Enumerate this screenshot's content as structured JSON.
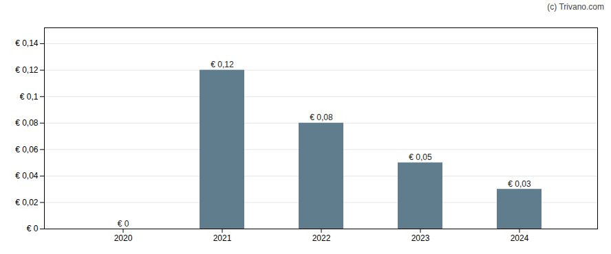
{
  "chart_data": {
    "type": "bar",
    "categories": [
      "2020",
      "2021",
      "2022",
      "2023",
      "2024"
    ],
    "values": [
      0.0,
      0.12,
      0.08,
      0.05,
      0.03
    ],
    "value_labels": [
      "€ 0",
      "€ 0,12",
      "€ 0,08",
      "€ 0,05",
      "€ 0,03"
    ],
    "data_labels": true,
    "color": "#5f7d8c",
    "ylim": [
      0,
      0.152
    ],
    "yticks": [
      {
        "value": 0,
        "label": "€ 0"
      },
      {
        "value": 0.02,
        "label": "€ 0,02"
      },
      {
        "value": 0.04,
        "label": "€ 0,04"
      },
      {
        "value": 0.06,
        "label": "€ 0,06"
      },
      {
        "value": 0.08,
        "label": "€ 0,08"
      },
      {
        "value": 0.1,
        "label": "€ 0,1"
      },
      {
        "value": 0.12,
        "label": "€ 0,12"
      },
      {
        "value": 0.14,
        "label": "€ 0,14"
      }
    ],
    "grid": true,
    "annotations": [
      "(c) Trivano.com"
    ]
  }
}
